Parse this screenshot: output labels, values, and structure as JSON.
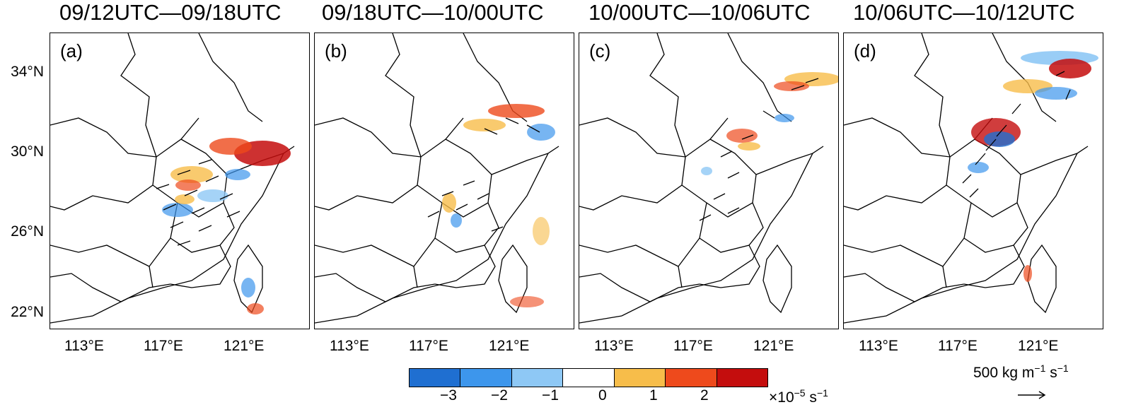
{
  "panels": [
    {
      "title": "09/12UTC—09/18UTC",
      "label": "(a)"
    },
    {
      "title": "09/18UTC—10/00UTC",
      "label": "(b)"
    },
    {
      "title": "10/00UTC—10/06UTC",
      "label": "(c)"
    },
    {
      "title": "10/06UTC—10/12UTC",
      "label": "(d)"
    }
  ],
  "lat_labels": [
    "34°N",
    "30°N",
    "26°N",
    "22°N"
  ],
  "lon_labels": [
    "113°E",
    "117°E",
    "121°E"
  ],
  "colorbar": {
    "colors": [
      "#1f6fd1",
      "#3d96ec",
      "#8ec8f5",
      "#ffffff",
      "#f7bd4a",
      "#ee4a1c",
      "#c40d0d"
    ],
    "ticks": [
      "−3",
      "−2",
      "−1",
      "0",
      "1",
      "2"
    ],
    "unit_prefix": "×10",
    "unit_exp": "−5",
    "unit_suffix": " s",
    "unit_exp2": "−1"
  },
  "reference_vector": {
    "value": "500 kg m",
    "exp1": "−1",
    "mid": " s",
    "exp2": "−1"
  }
}
